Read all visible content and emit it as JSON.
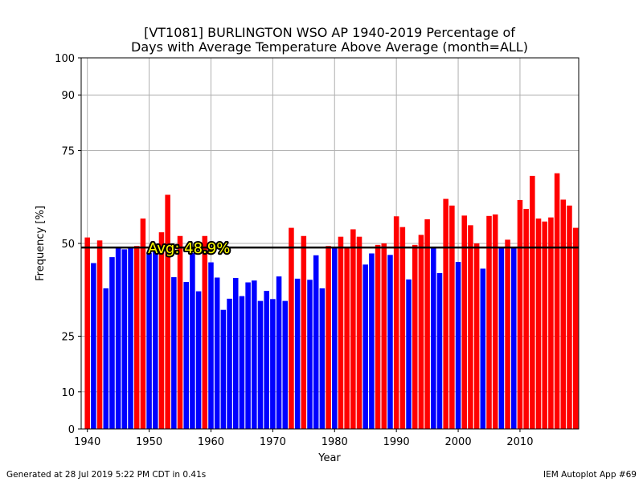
{
  "chart_data": {
    "type": "bar",
    "title": "[VT1081] BURLINGTON WSO AP 1940-2019 Percentage of",
    "subtitle": "Days with Average Temperature Above Average (month=ALL)",
    "xlabel": "Year",
    "ylabel": "Frequency [%]",
    "xlim": [
      1939,
      2019.5
    ],
    "ylim": [
      0,
      100
    ],
    "x_ticks": [
      1940,
      1950,
      1960,
      1970,
      1980,
      1990,
      2000,
      2010
    ],
    "y_ticks": [
      0,
      10,
      25,
      50,
      75,
      90,
      100
    ],
    "grid": true,
    "average": 48.9,
    "average_label": "Avg: 48.9%",
    "colors": {
      "above": "#ff0000",
      "below": "#0000ff",
      "average_line": "#000000",
      "average_text": "#ffff00",
      "grid": "#b0b0b0"
    },
    "years": [
      1940,
      1941,
      1942,
      1943,
      1944,
      1945,
      1946,
      1947,
      1948,
      1949,
      1950,
      1951,
      1952,
      1953,
      1954,
      1955,
      1956,
      1957,
      1958,
      1959,
      1960,
      1961,
      1962,
      1963,
      1964,
      1965,
      1966,
      1967,
      1968,
      1969,
      1970,
      1971,
      1972,
      1973,
      1974,
      1975,
      1976,
      1977,
      1978,
      1979,
      1980,
      1981,
      1982,
      1983,
      1984,
      1985,
      1986,
      1987,
      1988,
      1989,
      1990,
      1991,
      1992,
      1993,
      1994,
      1995,
      1996,
      1997,
      1998,
      1999,
      2000,
      2001,
      2002,
      2003,
      2004,
      2005,
      2006,
      2007,
      2008,
      2009,
      2010,
      2011,
      2012,
      2013,
      2014,
      2015,
      2016,
      2017,
      2018,
      2019
    ],
    "values": [
      51.6,
      44.7,
      50.8,
      37.9,
      46.3,
      48.8,
      48.4,
      48.9,
      49.3,
      56.7,
      47.4,
      48.9,
      53.0,
      63.1,
      40.9,
      52.0,
      39.6,
      47.4,
      37.1,
      52.0,
      44.9,
      40.8,
      32.1,
      35.1,
      40.7,
      35.8,
      39.5,
      40.0,
      34.5,
      37.2,
      35.0,
      41.1,
      34.5,
      54.2,
      40.5,
      52.0,
      40.2,
      46.8,
      37.9,
      49.3,
      48.9,
      51.8,
      49.0,
      53.8,
      51.8,
      44.3,
      47.3,
      49.6,
      50.0,
      46.9,
      57.3,
      54.4,
      40.3,
      49.6,
      52.3,
      56.5,
      48.9,
      42.0,
      62.0,
      60.2,
      45.0,
      57.5,
      54.9,
      50.0,
      43.2,
      57.4,
      57.8,
      48.9,
      51.0,
      48.9,
      61.7,
      59.3,
      68.2,
      56.7,
      55.9,
      57.0,
      68.9,
      61.8,
      60.2,
      54.2
    ]
  },
  "footer": {
    "left": "Generated at 28 Jul 2019 5:22 PM CDT in 0.41s",
    "right": "IEM Autoplot App #69"
  }
}
